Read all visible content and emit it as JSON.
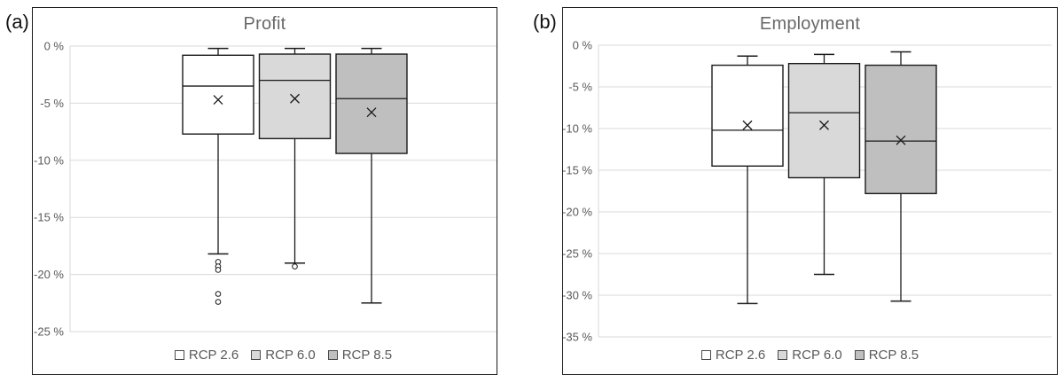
{
  "figure": {
    "background": "#ffffff"
  },
  "colors": {
    "grid": "#d9d9d9",
    "axis_text": "#595959",
    "title_text": "#696969",
    "box_border": "#1a1a1a",
    "panel_border": "#1a1a1a",
    "legend_text": "#595959"
  },
  "chart_data": [
    {
      "type": "boxplot",
      "panel_label": "(a)",
      "title": "Profit",
      "unit": "%",
      "grid": true,
      "legend_position": "bottom",
      "ylim": [
        0,
        -25
      ],
      "yticks": [
        0,
        -5,
        -10,
        -15,
        -20,
        -25
      ],
      "ytick_labels": [
        "0 %",
        "-5 %",
        "-10 %",
        "-15 %",
        "-20 %",
        "-25 %"
      ],
      "series": [
        {
          "name": "RCP 2.6",
          "fill": "#ffffff",
          "whisker_high": -0.2,
          "q3": -0.8,
          "median": -3.5,
          "mean": -4.7,
          "q1": -7.7,
          "whisker_low": -18.2,
          "outliers": [
            -18.9,
            -19.3,
            -19.6,
            -21.7,
            -22.4
          ]
        },
        {
          "name": "RCP 6.0",
          "fill": "#d9d9d9",
          "whisker_high": -0.2,
          "q3": -0.7,
          "median": -3.0,
          "mean": -4.6,
          "q1": -8.1,
          "whisker_low": -19.0,
          "outliers": [
            -19.3
          ]
        },
        {
          "name": "RCP 8.5",
          "fill": "#bfbfbf",
          "whisker_high": -0.2,
          "q3": -0.7,
          "median": -4.6,
          "mean": -5.8,
          "q1": -9.4,
          "whisker_low": -22.5,
          "outliers": []
        }
      ]
    },
    {
      "type": "boxplot",
      "panel_label": "(b)",
      "title": "Employment",
      "unit": "%",
      "grid": true,
      "legend_position": "bottom",
      "ylim": [
        0,
        -35
      ],
      "yticks": [
        0,
        -5,
        -10,
        -15,
        -20,
        -25,
        -30,
        -35
      ],
      "ytick_labels": [
        "0 %",
        "-5 %",
        "-10 %",
        "-15 %",
        "-20 %",
        "-25 %",
        "-30 %",
        "-35 %"
      ],
      "series": [
        {
          "name": "RCP 2.6",
          "fill": "#ffffff",
          "whisker_high": -1.3,
          "q3": -2.4,
          "median": -10.2,
          "mean": -9.6,
          "q1": -14.5,
          "whisker_low": -31.0,
          "outliers": []
        },
        {
          "name": "RCP 6.0",
          "fill": "#d9d9d9",
          "whisker_high": -1.1,
          "q3": -2.2,
          "median": -8.1,
          "mean": -9.6,
          "q1": -15.9,
          "whisker_low": -27.5,
          "outliers": []
        },
        {
          "name": "RCP 8.5",
          "fill": "#bfbfbf",
          "whisker_high": -0.8,
          "q3": -2.4,
          "median": -11.5,
          "mean": -11.4,
          "q1": -17.8,
          "whisker_low": -30.7,
          "outliers": []
        }
      ]
    }
  ]
}
